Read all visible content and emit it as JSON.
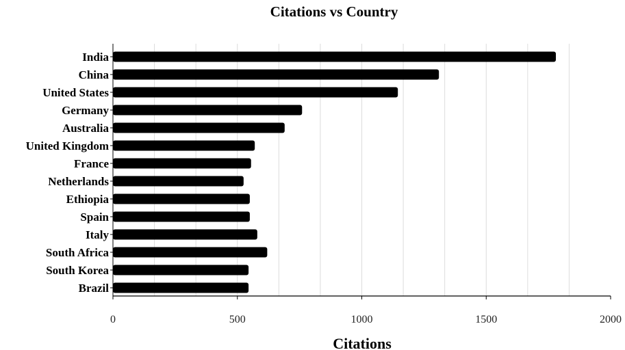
{
  "chart_data": {
    "type": "bar",
    "orientation": "horizontal",
    "title": "Citations vs Country",
    "xlabel": "Citations",
    "ylabel": "",
    "categories": [
      "India",
      "China",
      "United States",
      "Germany",
      "Australia",
      "United Kingdom",
      "France",
      "Netherlands",
      "Ethiopia",
      "Spain",
      "Italy",
      "South Africa",
      "South Korea",
      "Brazil"
    ],
    "values": [
      1780,
      1310,
      1145,
      760,
      690,
      570,
      555,
      525,
      550,
      550,
      580,
      620,
      545,
      545
    ],
    "xlim": [
      0,
      2000
    ],
    "xticks": [
      "0",
      "500",
      "1000",
      "1500",
      "2000"
    ],
    "xtick_values": [
      0,
      500,
      1000,
      1500,
      2000
    ],
    "grid": "vertical",
    "legend": "none",
    "bar_color": "#000000",
    "grid_color": "#dcdcdc"
  }
}
